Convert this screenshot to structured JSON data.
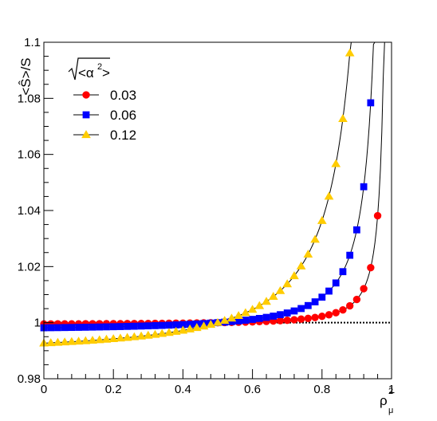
{
  "chart_data": {
    "type": "line",
    "xlabel": "ρ",
    "xlabel_sub": "μ",
    "xlabel_sup": "2",
    "ylabel": "<Ŝ>/S",
    "xlim": [
      0,
      1
    ],
    "ylim": [
      0.98,
      1.1
    ],
    "x_ticks": [
      0,
      0.2,
      0.4,
      0.6,
      0.8,
      1
    ],
    "x_tick_labels": [
      "0",
      "0.2",
      "0.4",
      "0.6",
      "0.8",
      "1"
    ],
    "y_ticks": [
      0.98,
      1,
      1.02,
      1.04,
      1.06,
      1.08,
      1.1
    ],
    "y_tick_labels": [
      "0.98",
      "1",
      "1.02",
      "1.04",
      "1.06",
      "1.08",
      "1.1"
    ],
    "legend_title": "√<α²>",
    "legend_title_base": "<α",
    "legend_title_sup": "2",
    "legend_title_close": ">",
    "legend_position": "top-left",
    "reference_line": {
      "y": 1,
      "style": "dotted",
      "color": "#000000"
    },
    "series": [
      {
        "name": "0.03",
        "color": "#ff0000",
        "marker": "circle",
        "a": 0.03
      },
      {
        "name": "0.06",
        "color": "#0000ff",
        "marker": "square",
        "a": 0.06
      },
      {
        "name": "0.12",
        "color": "#ffcc00",
        "marker": "triangle",
        "a": 0.12
      }
    ],
    "x": [
      0.0,
      0.02,
      0.04,
      0.06,
      0.08,
      0.1,
      0.12,
      0.14,
      0.16,
      0.18,
      0.2,
      0.22,
      0.24,
      0.26,
      0.28,
      0.3,
      0.32,
      0.34,
      0.36,
      0.38,
      0.4,
      0.42,
      0.44,
      0.46,
      0.48,
      0.5,
      0.52,
      0.54,
      0.56,
      0.58,
      0.6,
      0.62,
      0.64,
      0.66,
      0.68,
      0.7,
      0.72,
      0.74,
      0.76,
      0.78,
      0.8,
      0.82,
      0.84,
      0.86,
      0.88,
      0.9,
      0.92,
      0.94,
      0.96,
      0.98
    ]
  }
}
